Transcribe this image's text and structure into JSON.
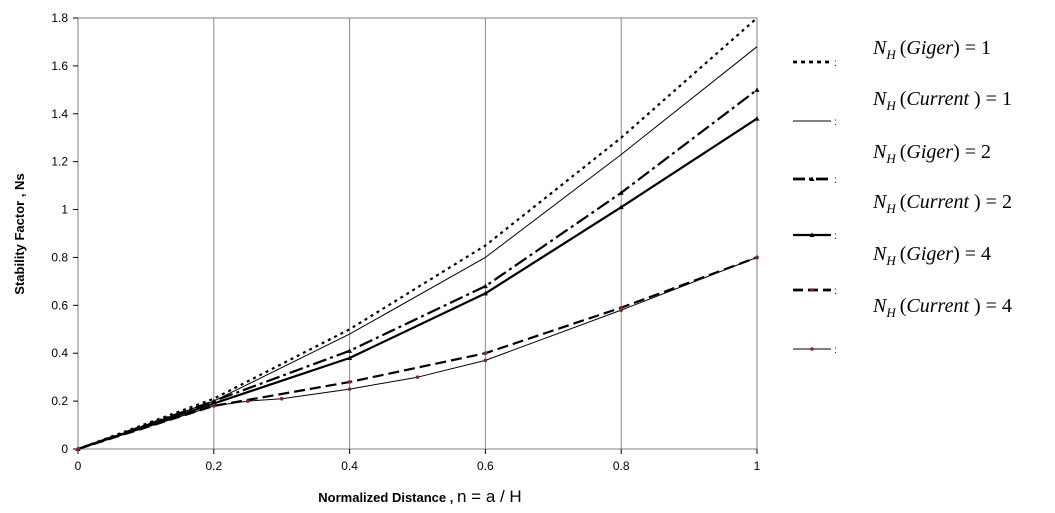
{
  "chart_data": {
    "type": "line",
    "xlabel_prefix": "Normalized Distance , ",
    "xlabel_symbol": "n = a / H",
    "ylabel": "Stability Factor , Ns",
    "xlim": [
      0,
      1
    ],
    "ylim": [
      0,
      1.8
    ],
    "grid": "vertical",
    "legend_placement": "right",
    "xticks": [
      "0",
      "0.2",
      "0.4",
      "0.6",
      "0.8",
      "1"
    ],
    "yticks": [
      "0",
      "0.2",
      "0.4",
      "0.6",
      "0.8",
      "1",
      "1.2",
      "1.4",
      "1.6",
      "1.8"
    ],
    "series": [
      {
        "legend": {
          "symbol": "N",
          "subscript": "H",
          "name": "Giger",
          "value": "1"
        },
        "x": [
          0,
          0.2,
          0.4,
          0.6,
          0.8,
          1
        ],
        "y": [
          0,
          0.21,
          0.5,
          0.85,
          1.3,
          1.8
        ]
      },
      {
        "legend": {
          "symbol": "N",
          "subscript": "H",
          "name": "Current",
          "value": "1"
        },
        "x": [
          0,
          0.2,
          0.4,
          0.6,
          0.8,
          1
        ],
        "y": [
          0,
          0.2,
          0.48,
          0.8,
          1.23,
          1.68
        ]
      },
      {
        "legend": {
          "symbol": "N",
          "subscript": "H",
          "name": "Giger",
          "value": "2"
        },
        "x": [
          0,
          0.2,
          0.4,
          0.6,
          0.8,
          1
        ],
        "y": [
          0,
          0.2,
          0.41,
          0.68,
          1.07,
          1.5
        ]
      },
      {
        "legend": {
          "symbol": "N",
          "subscript": "H",
          "name": "Current",
          "value": "2"
        },
        "x": [
          0,
          0.2,
          0.4,
          0.6,
          0.8,
          1
        ],
        "y": [
          0,
          0.19,
          0.38,
          0.65,
          1.01,
          1.38
        ]
      },
      {
        "legend": {
          "symbol": "N",
          "subscript": "H",
          "name": "Giger",
          "value": "4"
        },
        "x": [
          0,
          0.2,
          0.4,
          0.6,
          0.8,
          1
        ],
        "y": [
          0,
          0.18,
          0.28,
          0.4,
          0.59,
          0.8
        ]
      },
      {
        "legend": {
          "symbol": "N",
          "subscript": "H",
          "name": "Current",
          "value": "4"
        },
        "x": [
          0,
          0.2,
          0.25,
          0.3,
          0.4,
          0.5,
          0.6,
          0.8,
          1
        ],
        "y": [
          0,
          0.18,
          0.2,
          0.21,
          0.25,
          0.3,
          0.37,
          0.58,
          0.8
        ]
      }
    ]
  }
}
